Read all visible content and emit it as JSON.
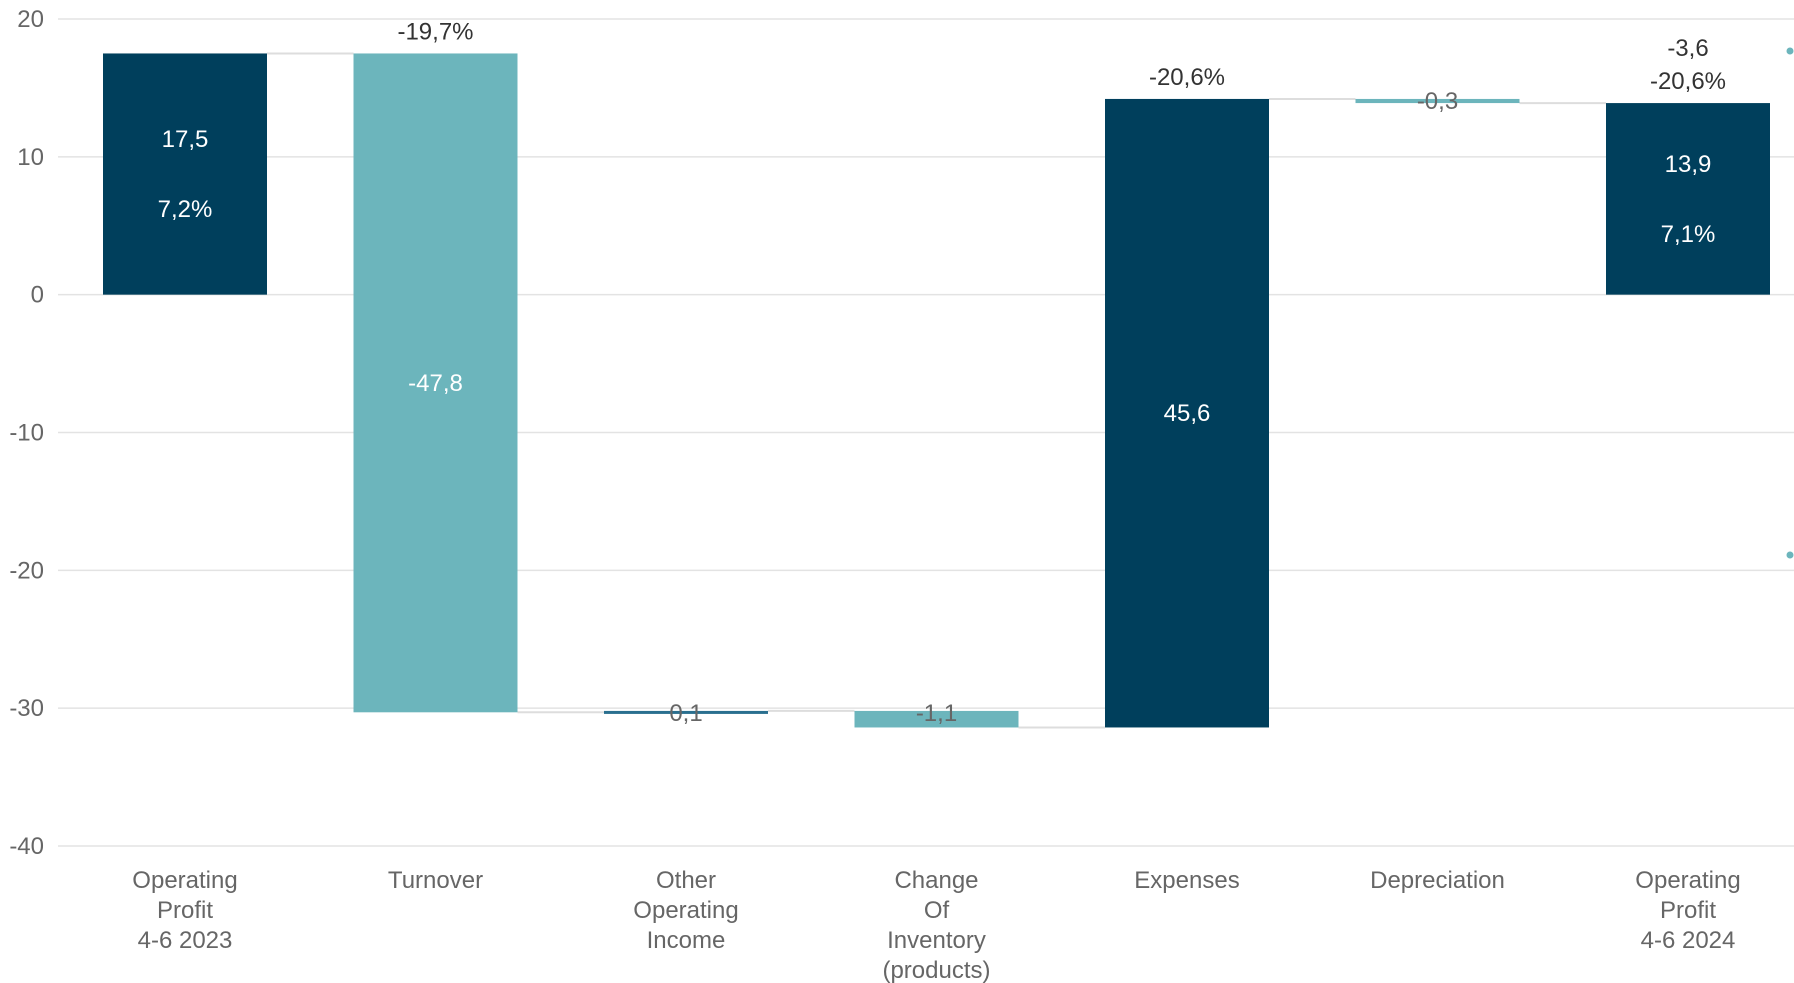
{
  "chart_data": {
    "type": "bar",
    "subtype": "waterfall",
    "title": "",
    "xlabel": "",
    "ylabel": "",
    "ylim": [
      -40,
      20
    ],
    "yticks": [
      -40,
      -30,
      -20,
      -10,
      0,
      10,
      20
    ],
    "grid": true,
    "categories": [
      "Operating Profit 4-6 2023",
      "Turnover",
      "Other Operating Income",
      "Change Of Inventory (products)",
      "Expenses",
      "Depreciation",
      "Operating Profit 4-6 2024"
    ],
    "category_lines": [
      [
        "Operating",
        "Profit",
        "4-6 2023"
      ],
      [
        "Turnover"
      ],
      [
        "Other",
        "Operating",
        "Income"
      ],
      [
        "Change",
        "Of",
        "Inventory",
        "(products)"
      ],
      [
        "Expenses"
      ],
      [
        "Depreciation"
      ],
      [
        "Operating",
        "Profit",
        "4-6 2024"
      ]
    ],
    "bars": [
      {
        "kind": "total",
        "start": 0,
        "end": 17.5,
        "color": "#003f5c",
        "labels": [
          "17,5",
          "7,2%"
        ],
        "top_labels": []
      },
      {
        "kind": "delta",
        "start": 17.5,
        "end": -30.3,
        "color": "#6cb5bc",
        "labels": [
          "-47,8"
        ],
        "top_labels": [
          "-19,7%"
        ]
      },
      {
        "kind": "delta",
        "start": -30.3,
        "end": -30.2,
        "color": "#2a6f8f",
        "labels": [
          "0,1"
        ],
        "top_labels": []
      },
      {
        "kind": "delta",
        "start": -30.2,
        "end": -31.4,
        "color": "#6cb5bc",
        "labels": [
          "-1,1"
        ],
        "top_labels": []
      },
      {
        "kind": "delta",
        "start": -31.4,
        "end": 14.2,
        "color": "#003f5c",
        "labels": [
          "45,6"
        ],
        "top_labels": [
          "-20,6%"
        ]
      },
      {
        "kind": "delta",
        "start": 14.2,
        "end": 13.9,
        "color": "#6cb5bc",
        "labels": [
          "-0,3"
        ],
        "top_labels": []
      },
      {
        "kind": "total",
        "start": 0,
        "end": 13.9,
        "color": "#003f5c",
        "labels": [
          "13,9",
          "7,1%"
        ],
        "top_labels": [
          "-3,6",
          "-20,6%"
        ]
      }
    ],
    "connector_color": "#dddddd",
    "grid_color": "#e3e3e3"
  }
}
